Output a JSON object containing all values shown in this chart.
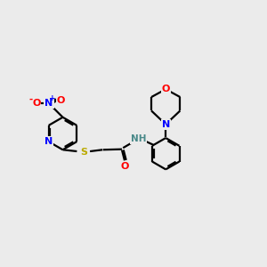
{
  "bg_color": "#ebebeb",
  "bond_color": "#000000",
  "colors": {
    "N": "#0000ff",
    "O": "#ff0000",
    "S": "#bbaa00",
    "NH": "#4a8a8a",
    "C": "#000000"
  },
  "linewidth": 1.6,
  "dbo": 0.06
}
